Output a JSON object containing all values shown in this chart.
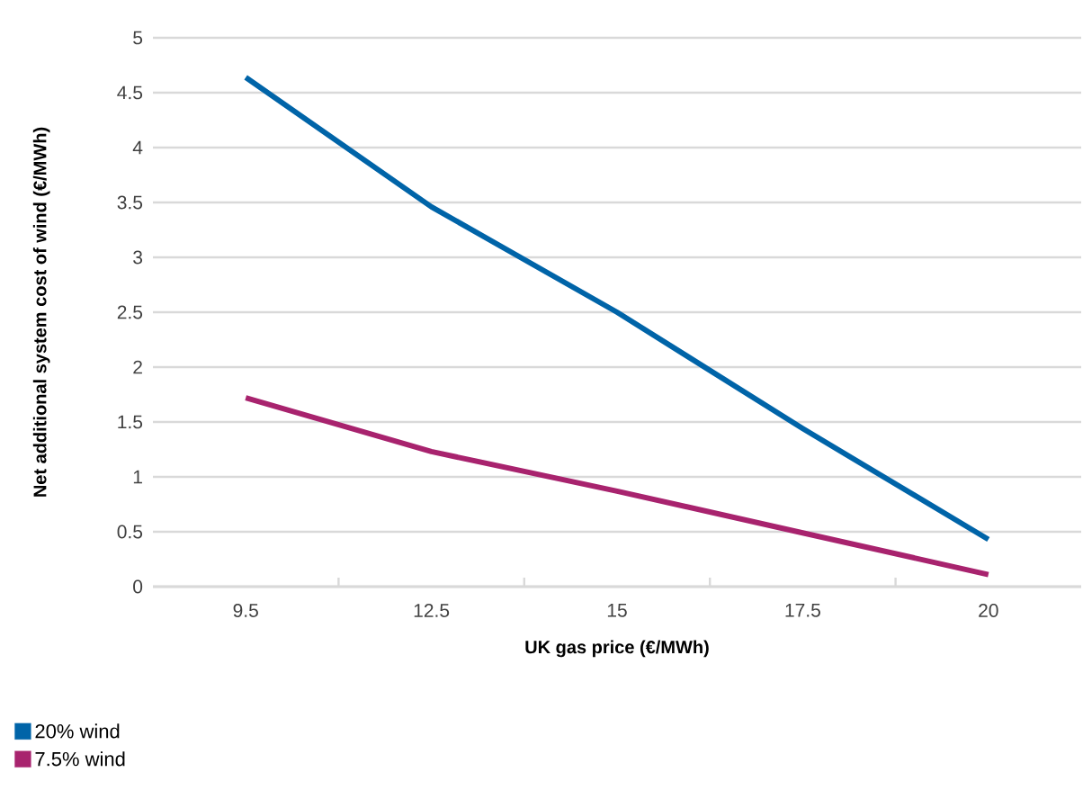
{
  "chart_data": {
    "type": "line",
    "xlabel": "UK gas price (€/MWh)",
    "ylabel": "Net additional system cost of wind (€/MWh)",
    "categories": [
      "9.5",
      "12.5",
      "15",
      "17.5",
      "20"
    ],
    "series": [
      {
        "name": "20% wind",
        "color": "#0064a8",
        "values": [
          4.64,
          3.46,
          2.5,
          1.44,
          0.43
        ]
      },
      {
        "name": "7.5% wind",
        "color": "#a8236e",
        "values": [
          1.72,
          1.23,
          0.87,
          0.49,
          0.11
        ]
      }
    ],
    "ylim": [
      0,
      5
    ],
    "yticks": [
      0,
      0.5,
      1,
      1.5,
      2,
      2.5,
      3,
      3.5,
      4,
      4.5,
      5
    ],
    "grid": "y",
    "legend": "bottom",
    "marker": "none",
    "line_style": "solid"
  }
}
